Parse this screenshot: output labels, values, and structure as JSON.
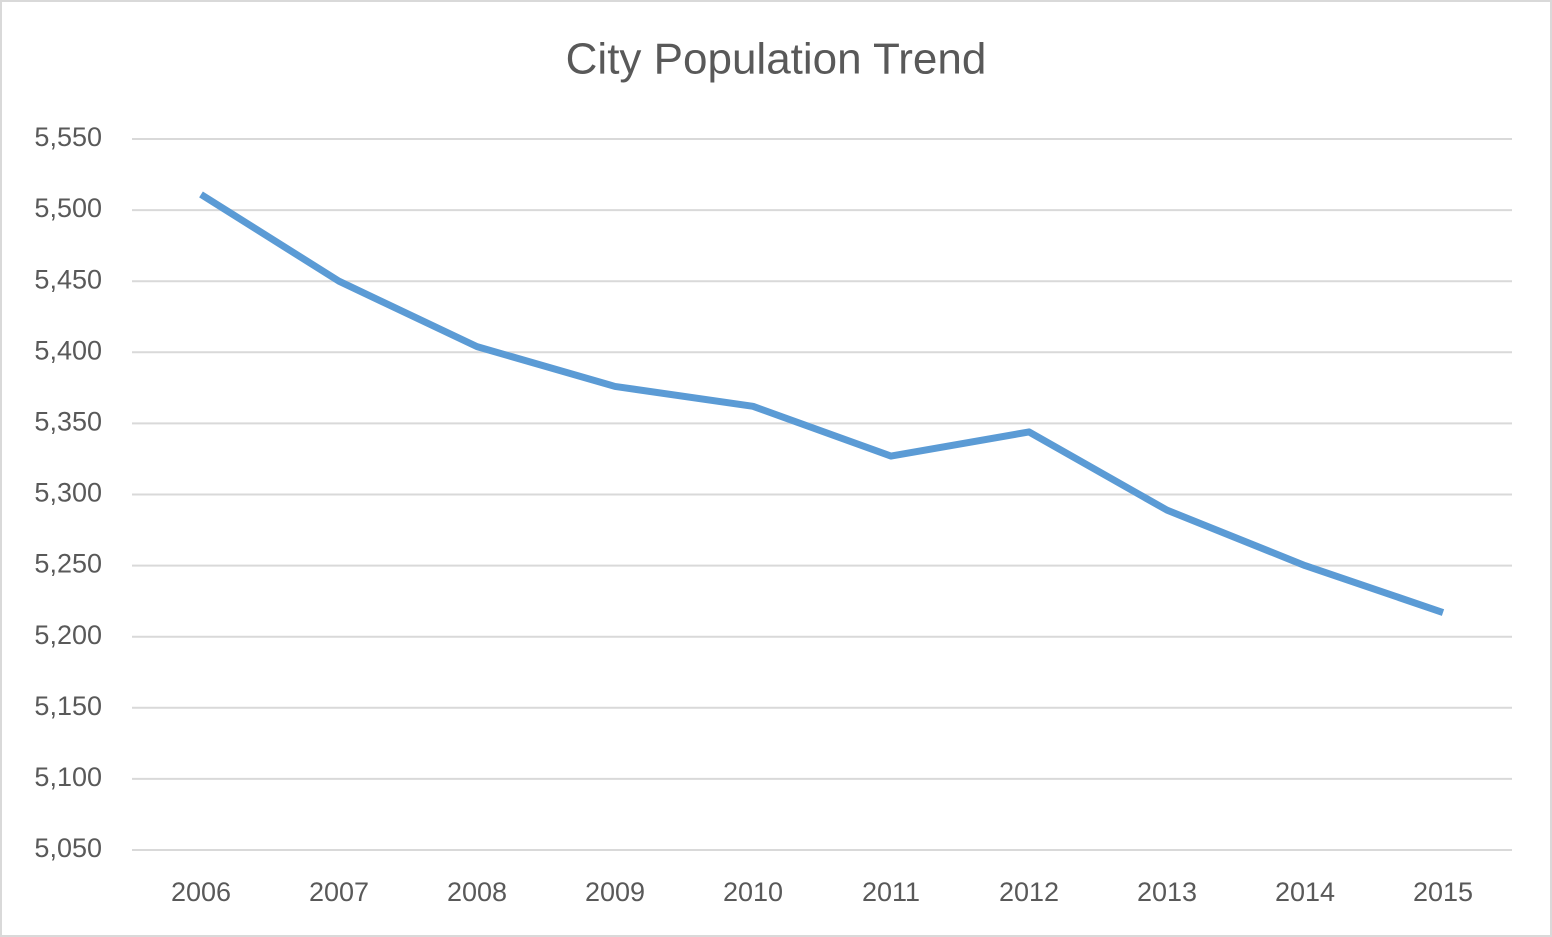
{
  "chart_data": {
    "type": "line",
    "title": "City Population Trend",
    "categories": [
      "2006",
      "2007",
      "2008",
      "2009",
      "2010",
      "2011",
      "2012",
      "2013",
      "2014",
      "2015"
    ],
    "values": [
      5511,
      5450,
      5404,
      5376,
      5362,
      5327,
      5344,
      5289,
      5250,
      5217
    ],
    "color": "#5b9bd5",
    "ylim": [
      5050,
      5550
    ],
    "yticks": [
      {
        "value": 5050,
        "label": "5,050"
      },
      {
        "value": 5100,
        "label": "5,100"
      },
      {
        "value": 5150,
        "label": "5,150"
      },
      {
        "value": 5200,
        "label": "5,200"
      },
      {
        "value": 5250,
        "label": "5,250"
      },
      {
        "value": 5300,
        "label": "5,300"
      },
      {
        "value": 5350,
        "label": "5,350"
      },
      {
        "value": 5400,
        "label": "5,400"
      },
      {
        "value": 5450,
        "label": "5,450"
      },
      {
        "value": 5500,
        "label": "5,500"
      },
      {
        "value": 5550,
        "label": "5,550"
      }
    ],
    "grid": true
  }
}
